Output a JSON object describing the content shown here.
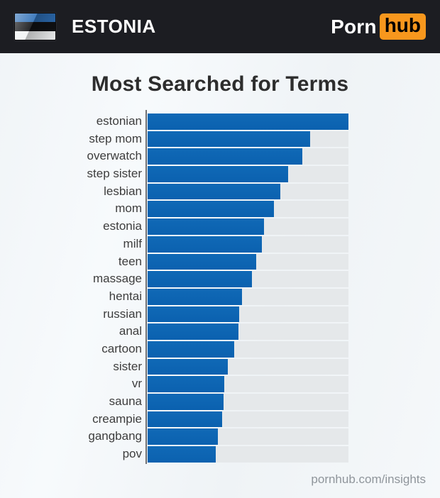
{
  "header": {
    "country_label": "ESTONIA",
    "logo": {
      "porn": "Porn",
      "hub": "hub"
    }
  },
  "flag": {
    "name": "estonia-flag",
    "stripe_colors": [
      "#2e6fb7",
      "#101114",
      "#f2f4f5"
    ]
  },
  "chart_data": {
    "type": "bar",
    "orientation": "horizontal",
    "title": "Most Searched for Terms",
    "categories": [
      "estonian",
      "step mom",
      "overwatch",
      "step sister",
      "lesbian",
      "mom",
      "estonia",
      "milf",
      "teen",
      "massage",
      "hentai",
      "russian",
      "anal",
      "cartoon",
      "sister",
      "vr",
      "sauna",
      "creampie",
      "gangbang",
      "pov"
    ],
    "values": [
      100,
      81,
      77,
      70,
      66,
      63,
      58,
      57,
      54,
      52,
      47,
      45.6,
      45.3,
      43,
      40,
      38.3,
      37.7,
      37,
      35,
      34
    ],
    "xlim": [
      0,
      100
    ],
    "grid": false,
    "legend": "none",
    "bar_color": "#0c64b2",
    "track_color": "#e5e8ea",
    "axis_color": "#6e6f72"
  },
  "footer": {
    "site_label": "pornhub.com/insights"
  },
  "colors": {
    "header_bg": "#1c1d22",
    "hub_orange": "#f7971d",
    "title_text": "#2d2d2d",
    "label_text": "#3d3d3d",
    "footer_text": "#8f959b"
  }
}
